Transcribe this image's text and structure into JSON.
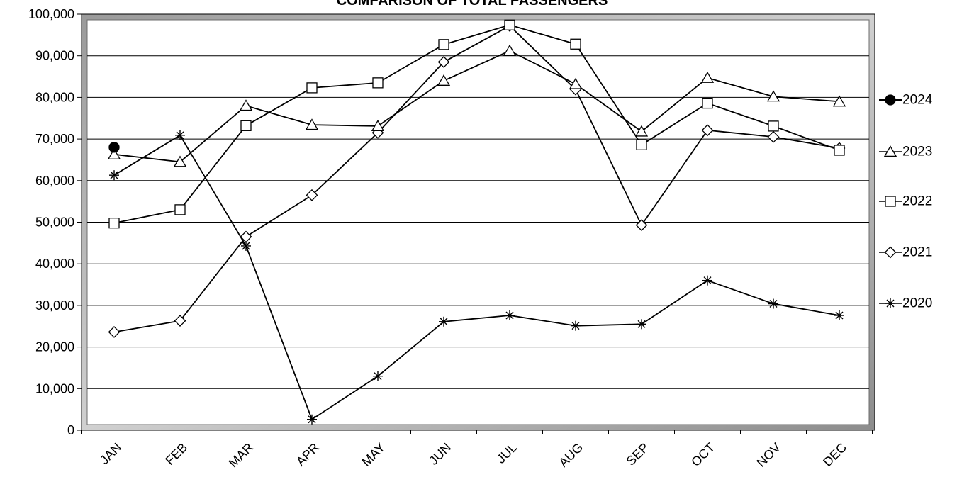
{
  "chart_data": {
    "type": "line",
    "title": "COMPARISON OF TOTAL PASSENGERS",
    "xlabel": "",
    "ylabel": "",
    "categories": [
      "JAN",
      "FEB",
      "MAR",
      "APR",
      "MAY",
      "JUN",
      "JUL",
      "AUG",
      "SEP",
      "OCT",
      "NOV",
      "DEC"
    ],
    "y_ticks": [
      "0",
      "10,000",
      "20,000",
      "30,000",
      "40,000",
      "50,000",
      "60,000",
      "70,000",
      "80,000",
      "90,000",
      "100,000"
    ],
    "ylim": [
      0,
      100000
    ],
    "grid": "horizontal",
    "legend_position": "right",
    "series": [
      {
        "name": "2024",
        "marker": "filled-circle",
        "values": [
          68000,
          null,
          null,
          null,
          null,
          null,
          null,
          null,
          null,
          null,
          null,
          null
        ]
      },
      {
        "name": "2023",
        "marker": "triangle",
        "values": [
          66300,
          64500,
          78000,
          73400,
          73100,
          84000,
          91200,
          83200,
          71800,
          84700,
          80200,
          79000
        ]
      },
      {
        "name": "2022",
        "marker": "square",
        "values": [
          49800,
          53000,
          73200,
          82300,
          83500,
          92700,
          97400,
          92800,
          68600,
          78600,
          73100,
          67300
        ]
      },
      {
        "name": "2021",
        "marker": "diamond",
        "values": [
          23600,
          26300,
          46500,
          56500,
          71500,
          88500,
          97200,
          81900,
          49300,
          72100,
          70500,
          67800
        ]
      },
      {
        "name": "2020",
        "marker": "asterisk",
        "values": [
          61300,
          70900,
          44300,
          2600,
          13000,
          26100,
          27600,
          25100,
          25500,
          36000,
          30400,
          27600
        ]
      }
    ]
  }
}
